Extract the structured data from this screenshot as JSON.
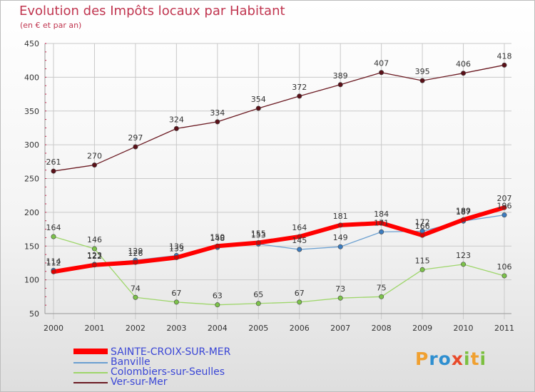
{
  "title": "Evolution des Impôts locaux par Habitant",
  "subtitle": "(en € et par an)",
  "logo": {
    "text": "Proxiti",
    "letters": [
      "P",
      "r",
      "o",
      "x",
      "i",
      "t",
      "i"
    ],
    "colors": [
      "#f0a030",
      "#2f8fd0",
      "#2f8fd0",
      "#e84a2a",
      "#7cc040",
      "#f0a030",
      "#7cc040"
    ]
  },
  "colors": {
    "title": "#c0354f",
    "legend_text": "#3a46d6",
    "grid": "#c9c9c9",
    "axis_ticks": "#cc0033"
  },
  "chart_data": {
    "type": "line",
    "title": "Evolution des Impôts locaux par Habitant",
    "subtitle": "(en € et par an)",
    "x": [
      "2000",
      "2001",
      "2002",
      "2003",
      "2004",
      "2005",
      "2006",
      "2007",
      "2008",
      "2009",
      "2010",
      "2011"
    ],
    "ylim": [
      50,
      450
    ],
    "yticks": [
      50,
      100,
      150,
      200,
      250,
      300,
      350,
      400,
      450
    ],
    "grid": true,
    "legend_position": "bottom-left",
    "series": [
      {
        "name": "Ver-sur-Mer",
        "color": "#6b1a22",
        "marker": "#5a1018",
        "width": 1.3,
        "values": [
          261,
          270,
          297,
          324,
          334,
          354,
          372,
          389,
          407,
          395,
          406,
          418
        ],
        "labels": [
          "261",
          "270",
          "297",
          "324",
          "334",
          "354",
          "372",
          "389",
          "407",
          "395",
          "406",
          "418"
        ]
      },
      {
        "name": "Colombiers-sur-Seulles",
        "color": "#9ed66a",
        "marker": "#7cc24a",
        "width": 1.3,
        "values": [
          164,
          146,
          74,
          67,
          63,
          65,
          67,
          73,
          75,
          115,
          123,
          106
        ],
        "labels": [
          "164",
          "146",
          "74",
          "67",
          "63",
          "65",
          "67",
          "73",
          "75",
          "115",
          "123",
          "106"
        ]
      },
      {
        "name": "Banville",
        "color": "#6a9fd0",
        "marker": "#3b7cc0",
        "width": 1.3,
        "values": [
          114,
          123,
          129,
          136,
          148,
          153,
          145,
          149,
          171,
          172,
          187,
          196
        ],
        "labels": [
          "114",
          "123",
          "129",
          "136",
          "148",
          "153",
          "145",
          "149",
          "171",
          "172",
          "187",
          "196"
        ]
      },
      {
        "name": "SAINTE-CROIX-SUR-MER",
        "color": "#ff0000",
        "marker": "#e00000",
        "width": 6,
        "values": [
          112,
          122,
          126,
          133,
          150,
          155,
          164,
          181,
          184,
          166,
          189,
          207
        ],
        "labels": [
          "112",
          "122",
          "126",
          "133",
          "150",
          "155",
          "164",
          "181",
          "184",
          "166",
          "189",
          "207"
        ]
      }
    ],
    "legend": [
      "SAINTE-CROIX-SUR-MER",
      "Banville",
      "Colombiers-sur-Seulles",
      "Ver-sur-Mer"
    ]
  }
}
